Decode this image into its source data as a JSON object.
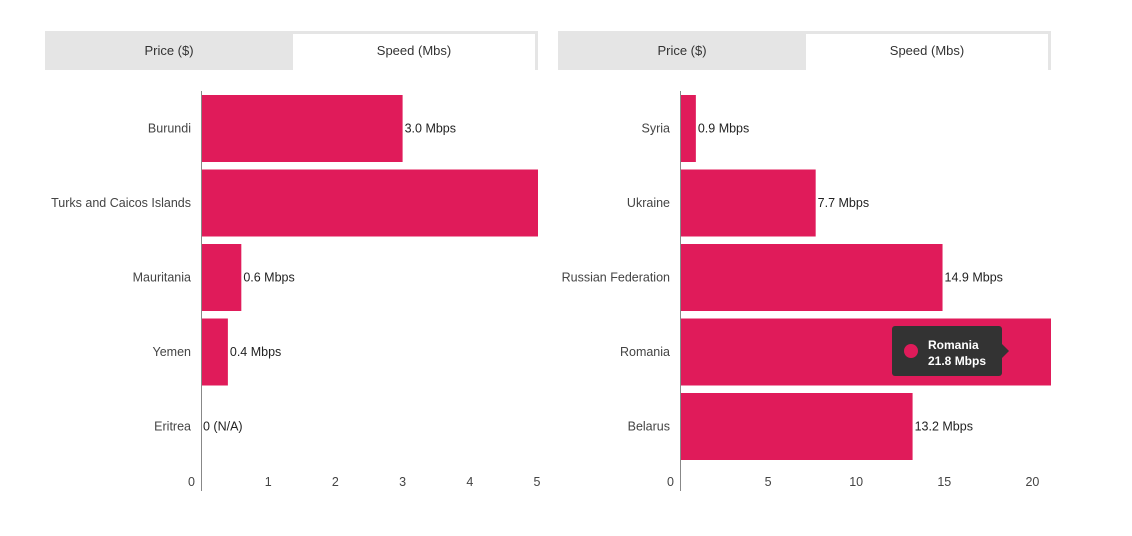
{
  "colors": {
    "bar": "#e01b5a",
    "axis": "#888888",
    "tab_bg": "#e5e5e5",
    "tab_active": "#ffffff"
  },
  "panels": [
    {
      "tabs": [
        {
          "label": "Price ($)",
          "active": false
        },
        {
          "label": "Speed (Mbs)",
          "active": true
        }
      ]
    },
    {
      "tabs": [
        {
          "label": "Price ($)",
          "active": false
        },
        {
          "label": "Speed (Mbs)",
          "active": true
        }
      ],
      "tooltip": {
        "name": "Romania",
        "value": "21.8 Mbps"
      }
    }
  ],
  "chart_data": [
    {
      "type": "bar",
      "orientation": "horizontal",
      "categories": [
        "Burundi",
        "Turks and Caicos Islands",
        "Mauritania",
        "Yemen",
        "Eritrea"
      ],
      "values": [
        3.0,
        5.1,
        0.6,
        0.4,
        0
      ],
      "value_labels": [
        "3.0 Mbps",
        "",
        "0.6 Mbps",
        "0.4 Mbps",
        "0 (N/A)"
      ],
      "xlim": [
        0,
        5
      ],
      "xticks": [
        0,
        1,
        2,
        3,
        4,
        5
      ],
      "title": "",
      "xlabel": "",
      "ylabel": ""
    },
    {
      "type": "bar",
      "orientation": "horizontal",
      "categories": [
        "Syria",
        "Ukraine",
        "Russian Federation",
        "Romania",
        "Belarus"
      ],
      "values": [
        0.9,
        7.7,
        14.9,
        21.8,
        13.2
      ],
      "value_labels": [
        "0.9 Mbps",
        "7.7 Mbps",
        "14.9 Mbps",
        "",
        "13.2 Mbps"
      ],
      "xlim": [
        0,
        20
      ],
      "xticks": [
        0,
        5,
        10,
        15,
        20
      ],
      "title": "",
      "xlabel": "",
      "ylabel": ""
    }
  ]
}
